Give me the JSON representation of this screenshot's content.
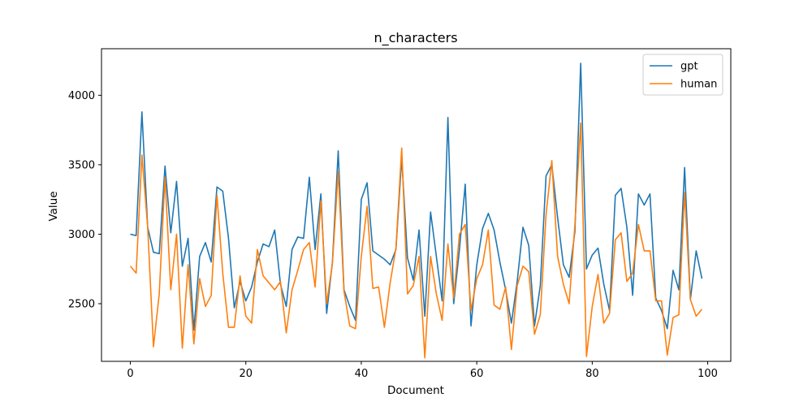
{
  "chart_data": {
    "type": "line",
    "title": "n_characters",
    "xlabel": "Document",
    "ylabel": "Value",
    "xlim": [
      -5,
      104
    ],
    "ylim": [
      2085,
      4335
    ],
    "xticks": [
      0,
      20,
      40,
      60,
      80,
      100
    ],
    "yticks": [
      2500,
      3000,
      3500,
      4000
    ],
    "grid": false,
    "legend_position": "top-right",
    "series": [
      {
        "name": "gpt",
        "color": "#1f77b4",
        "values": [
          3000,
          2990,
          3880,
          3050,
          2870,
          2860,
          3490,
          3010,
          3380,
          2770,
          2970,
          2310,
          2840,
          2940,
          2800,
          3340,
          3310,
          2970,
          2470,
          2660,
          2520,
          2620,
          2800,
          2930,
          2910,
          3030,
          2640,
          2480,
          2890,
          2980,
          2970,
          3410,
          2890,
          3290,
          2430,
          2800,
          3600,
          2600,
          2480,
          2380,
          3250,
          3370,
          2880,
          2850,
          2820,
          2780,
          2890,
          3550,
          2830,
          2670,
          3030,
          2410,
          3160,
          2840,
          2520,
          3840,
          2500,
          2890,
          3360,
          2340,
          2780,
          3040,
          3150,
          3030,
          2800,
          2600,
          2360,
          2660,
          3050,
          2920,
          2340,
          2630,
          3420,
          3500,
          3120,
          2780,
          2690,
          3020,
          4230,
          2750,
          2850,
          2900,
          2640,
          2450,
          3280,
          3330,
          3050,
          2560,
          3290,
          3210,
          3290,
          2540,
          2450,
          2320,
          2740,
          2600,
          3480,
          2530,
          2880,
          2680
        ]
      },
      {
        "name": "human",
        "color": "#ff7f0e",
        "values": [
          2770,
          2720,
          3570,
          3050,
          2190,
          2570,
          3410,
          2600,
          3000,
          2180,
          2780,
          2210,
          2680,
          2480,
          2560,
          3280,
          2720,
          2330,
          2330,
          2700,
          2410,
          2360,
          2890,
          2700,
          2650,
          2600,
          2660,
          2290,
          2600,
          2740,
          2890,
          2940,
          2620,
          3240,
          2500,
          2790,
          3450,
          2590,
          2340,
          2320,
          2840,
          3200,
          2610,
          2620,
          2330,
          2650,
          2900,
          3620,
          2570,
          2630,
          2840,
          2110,
          2840,
          2570,
          2380,
          2930,
          2540,
          3000,
          3070,
          2450,
          2680,
          2780,
          3030,
          2490,
          2460,
          2620,
          2170,
          2630,
          2770,
          2730,
          2280,
          2420,
          3140,
          3530,
          2840,
          2640,
          2500,
          3070,
          3800,
          2120,
          2480,
          2710,
          2360,
          2430,
          2960,
          3010,
          2660,
          2720,
          3070,
          2880,
          2880,
          2520,
          2520,
          2130,
          2400,
          2420,
          3300,
          2530,
          2410,
          2460
        ]
      }
    ]
  }
}
